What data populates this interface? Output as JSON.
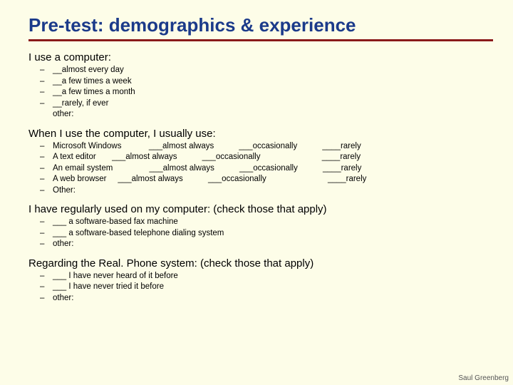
{
  "colors": {
    "background": "#fdfde8",
    "title": "#1b3a8a",
    "rule": "#8a1a1a",
    "text": "#000000",
    "footer": "#555555"
  },
  "typography": {
    "title_fontsize": 26,
    "question_fontsize": 15,
    "item_fontsize": 11.5,
    "footer_fontsize": 10,
    "font_family": "Verdana"
  },
  "title": "Pre-test: demographics & experience",
  "footer": "Saul Greenberg",
  "dash": "–",
  "sections": [
    {
      "question": "I use a computer:",
      "items": [
        "__almost every day",
        "__a few times a week",
        "__a few times a month",
        "__rarely, if ever\nother:"
      ]
    },
    {
      "question": "When I use the computer, I usually use:",
      "items": [
        "Microsoft Windows            ___almost always           ___occasionally           ____rarely",
        "A text editor       ___almost always           ___occasionally                           ____rarely",
        "An email system                ___almost always           ___occasionally           ____rarely",
        "A web browser     ___almost always           ___occasionally                           ____rarely",
        "Other:"
      ]
    },
    {
      "question": "I have regularly used on my computer: (check those that apply)",
      "items": [
        "___ a software-based fax machine",
        "___ a software-based telephone dialing system",
        "other:"
      ]
    },
    {
      "question": "Regarding the Real. Phone system: (check those that apply)",
      "items": [
        "___ I have never heard of it before",
        "___ I have never tried it before",
        "other:"
      ]
    }
  ]
}
